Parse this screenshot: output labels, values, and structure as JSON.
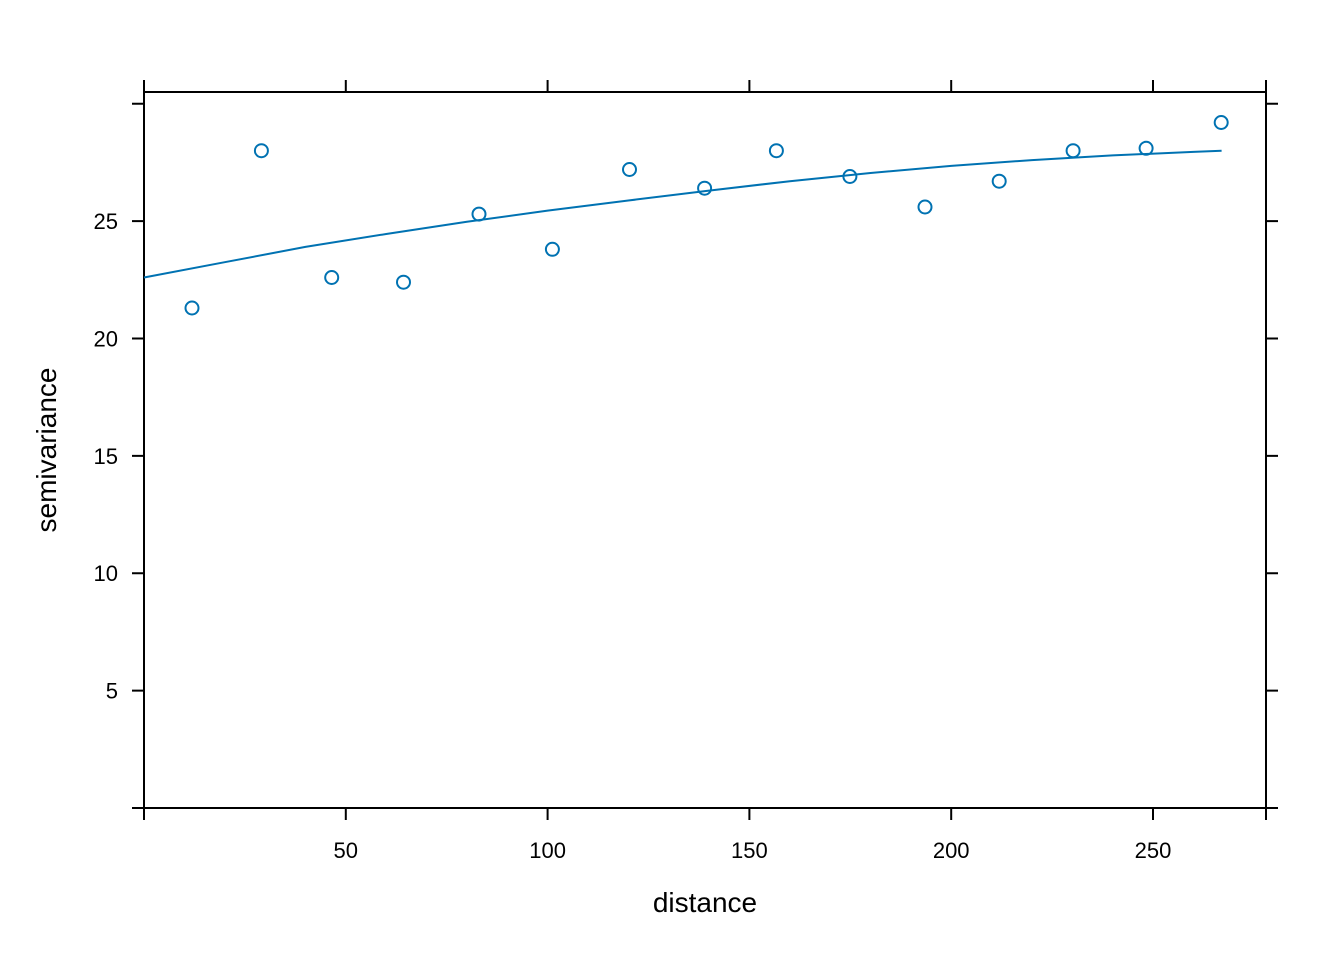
{
  "chart_data": {
    "type": "scatter",
    "xlabel": "distance",
    "ylabel": "semivariance",
    "xlim": [
      0,
      278
    ],
    "ylim": [
      0,
      30.5
    ],
    "xticks": [
      50,
      100,
      150,
      200,
      250
    ],
    "yticks": [
      5,
      10,
      15,
      20,
      25
    ],
    "xtick_labels": [
      "50",
      "100",
      "150",
      "200",
      "250"
    ],
    "ytick_labels": [
      "5",
      "10",
      "15",
      "20",
      "25"
    ],
    "grid": false,
    "legend": "none",
    "colors": {
      "series": "#0072B2",
      "axis": "#000000"
    },
    "series": [
      {
        "type": "scatter",
        "marker": "open-circle",
        "x": [
          11.9,
          29.1,
          46.5,
          64.3,
          83.0,
          101.2,
          120.3,
          138.9,
          156.7,
          174.9,
          193.5,
          211.9,
          230.2,
          248.3,
          266.9
        ],
        "y": [
          21.3,
          28.0,
          22.6,
          22.4,
          25.3,
          23.8,
          27.2,
          26.4,
          28.0,
          26.9,
          25.6,
          26.7,
          28.0,
          28.1,
          29.2
        ]
      },
      {
        "type": "line",
        "x": [
          0,
          20,
          40,
          60,
          80,
          100,
          120,
          140,
          160,
          180,
          200,
          220,
          240,
          260,
          267
        ],
        "y": [
          22.6,
          23.25,
          23.9,
          24.45,
          24.97,
          25.45,
          25.88,
          26.3,
          26.7,
          27.05,
          27.35,
          27.6,
          27.8,
          27.95,
          28.0
        ]
      }
    ]
  }
}
